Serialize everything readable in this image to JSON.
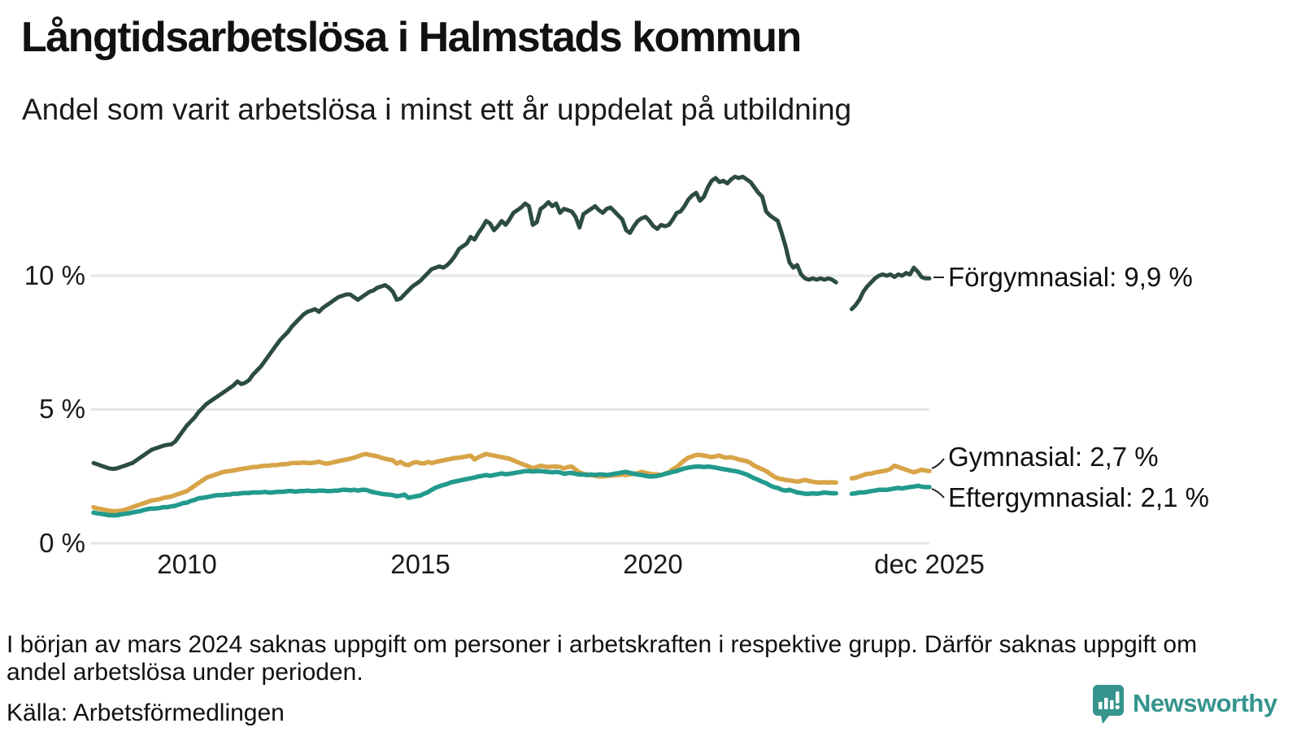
{
  "header": {
    "title": "Långtidsarbetslösa i Halmstads kommun",
    "subtitle": "Andel som varit arbetslösa i minst ett år uppdelat på utbildning"
  },
  "chart_data": {
    "type": "line",
    "title": "Långtidsarbetslösa i Halmstads kommun",
    "subtitle": "Andel som varit arbetslösa i minst ett år uppdelat på utbildning",
    "unit": "%",
    "interval": "monthly",
    "x_start": "2008-01",
    "x_end": "2025-12",
    "ylim": [
      0,
      14.5
    ],
    "grid": "horizontal",
    "ytick_values": [
      0,
      5,
      10
    ],
    "axis_labels": {
      "y": [
        "0 %",
        "5 %",
        "10 %"
      ],
      "x": [
        "2010",
        "2015",
        "2020",
        "dec 2025"
      ]
    },
    "xtick_month_index": [
      24,
      84,
      144,
      215
    ],
    "missing_data_months": [
      "2024-01",
      "2024-02",
      "2024-03"
    ],
    "colors": {
      "grid": "#e6e6e6",
      "connector": "#222222"
    },
    "series": [
      {
        "name": "Förgymnasial",
        "color": "#2c4c43",
        "end_value": "9,9 %",
        "end_label": "Förgymnasial: 9,9 %",
        "values": [
          3.0,
          2.95,
          2.9,
          2.85,
          2.8,
          2.78,
          2.8,
          2.85,
          2.9,
          2.95,
          3.0,
          3.1,
          3.2,
          3.3,
          3.4,
          3.5,
          3.55,
          3.6,
          3.65,
          3.68,
          3.7,
          3.8,
          4.0,
          4.2,
          4.4,
          4.55,
          4.7,
          4.9,
          5.05,
          5.2,
          5.3,
          5.4,
          5.5,
          5.6,
          5.7,
          5.8,
          5.9,
          6.05,
          5.95,
          6.0,
          6.1,
          6.3,
          6.45,
          6.6,
          6.8,
          7.0,
          7.2,
          7.4,
          7.6,
          7.75,
          7.9,
          8.1,
          8.25,
          8.4,
          8.55,
          8.65,
          8.7,
          8.75,
          8.65,
          8.8,
          8.9,
          9.0,
          9.1,
          9.2,
          9.25,
          9.3,
          9.3,
          9.2,
          9.1,
          9.2,
          9.3,
          9.4,
          9.45,
          9.55,
          9.6,
          9.65,
          9.55,
          9.4,
          9.1,
          9.15,
          9.3,
          9.45,
          9.6,
          9.7,
          9.8,
          9.95,
          10.1,
          10.25,
          10.3,
          10.35,
          10.3,
          10.4,
          10.55,
          10.75,
          11.0,
          11.1,
          11.2,
          11.45,
          11.35,
          11.6,
          11.8,
          12.05,
          11.95,
          11.7,
          11.85,
          12.05,
          11.9,
          12.1,
          12.35,
          12.45,
          12.55,
          12.7,
          12.6,
          11.9,
          12.0,
          12.5,
          12.6,
          12.75,
          12.6,
          12.7,
          12.35,
          12.5,
          12.45,
          12.4,
          12.2,
          11.8,
          12.3,
          12.4,
          12.5,
          12.6,
          12.45,
          12.35,
          12.5,
          12.55,
          12.4,
          12.25,
          12.1,
          11.7,
          11.6,
          11.85,
          12.05,
          12.15,
          12.2,
          12.05,
          11.85,
          11.75,
          11.9,
          11.85,
          11.9,
          12.1,
          12.35,
          12.4,
          12.6,
          12.85,
          13.0,
          13.1,
          12.8,
          12.95,
          13.3,
          13.55,
          13.65,
          13.5,
          13.55,
          13.45,
          13.6,
          13.7,
          13.65,
          13.7,
          13.6,
          13.5,
          13.3,
          13.1,
          12.95,
          12.4,
          12.25,
          12.15,
          12.05,
          11.6,
          11.1,
          10.5,
          10.3,
          10.4,
          10.05,
          9.9,
          9.85,
          9.9,
          9.85,
          9.9,
          9.85,
          9.9,
          9.85,
          9.75,
          null,
          null,
          null,
          8.75,
          8.9,
          9.1,
          9.4,
          9.6,
          9.75,
          9.9,
          10.0,
          10.05,
          10.0,
          10.05,
          9.95,
          10.05,
          10.0,
          10.1,
          10.05,
          10.3,
          10.15,
          9.95,
          9.9,
          9.9
        ]
      },
      {
        "name": "Gymnasial",
        "color": "#d8a448",
        "end_value": "2,7 %",
        "end_label": "Gymnasial: 2,7 %",
        "values": [
          1.35,
          1.3,
          1.28,
          1.25,
          1.22,
          1.2,
          1.2,
          1.22,
          1.25,
          1.3,
          1.35,
          1.4,
          1.45,
          1.5,
          1.55,
          1.6,
          1.62,
          1.65,
          1.7,
          1.72,
          1.75,
          1.8,
          1.85,
          1.9,
          1.95,
          2.05,
          2.15,
          2.25,
          2.35,
          2.45,
          2.5,
          2.55,
          2.6,
          2.65,
          2.68,
          2.7,
          2.72,
          2.75,
          2.78,
          2.8,
          2.82,
          2.85,
          2.85,
          2.88,
          2.9,
          2.9,
          2.92,
          2.92,
          2.95,
          2.95,
          2.97,
          3.0,
          3.0,
          3.0,
          3.02,
          3.0,
          3.0,
          3.02,
          3.05,
          3.0,
          2.98,
          3.0,
          3.04,
          3.07,
          3.1,
          3.13,
          3.16,
          3.2,
          3.25,
          3.3,
          3.34,
          3.3,
          3.28,
          3.25,
          3.2,
          3.16,
          3.13,
          3.1,
          2.98,
          3.04,
          2.95,
          2.92,
          3.0,
          3.04,
          3.0,
          2.98,
          3.04,
          3.0,
          3.04,
          3.07,
          3.1,
          3.13,
          3.16,
          3.19,
          3.2,
          3.22,
          3.25,
          3.28,
          3.13,
          3.22,
          3.28,
          3.34,
          3.3,
          3.28,
          3.25,
          3.22,
          3.19,
          3.16,
          3.1,
          3.04,
          2.98,
          2.92,
          2.87,
          2.8,
          2.85,
          2.9,
          2.87,
          2.85,
          2.87,
          2.87,
          2.85,
          2.8,
          2.85,
          2.87,
          2.75,
          2.65,
          2.6,
          2.57,
          2.55,
          2.53,
          2.5,
          2.5,
          2.52,
          2.53,
          2.55,
          2.55,
          2.57,
          2.55,
          2.58,
          2.6,
          2.62,
          2.67,
          2.63,
          2.6,
          2.58,
          2.57,
          2.55,
          2.6,
          2.65,
          2.77,
          2.85,
          2.98,
          3.1,
          3.2,
          3.25,
          3.3,
          3.3,
          3.28,
          3.25,
          3.22,
          3.25,
          3.28,
          3.22,
          3.2,
          3.22,
          3.18,
          3.13,
          3.1,
          3.07,
          3.0,
          2.9,
          2.83,
          2.77,
          2.7,
          2.6,
          2.5,
          2.43,
          2.4,
          2.37,
          2.35,
          2.33,
          2.3,
          2.33,
          2.37,
          2.33,
          2.3,
          2.28,
          2.27,
          2.28,
          2.27,
          2.28,
          2.27,
          null,
          null,
          null,
          2.43,
          2.45,
          2.5,
          2.55,
          2.6,
          2.6,
          2.65,
          2.67,
          2.7,
          2.72,
          2.78,
          2.9,
          2.85,
          2.8,
          2.75,
          2.7,
          2.65,
          2.7,
          2.75,
          2.72,
          2.7
        ]
      },
      {
        "name": "Eftergymnasial",
        "color": "#229a8d",
        "end_value": "2,1 %",
        "end_label": "Eftergymnasial: 2,1 %",
        "values": [
          1.15,
          1.12,
          1.1,
          1.08,
          1.05,
          1.05,
          1.05,
          1.08,
          1.1,
          1.12,
          1.15,
          1.18,
          1.2,
          1.25,
          1.28,
          1.3,
          1.3,
          1.32,
          1.35,
          1.35,
          1.38,
          1.4,
          1.45,
          1.5,
          1.52,
          1.58,
          1.62,
          1.68,
          1.7,
          1.72,
          1.75,
          1.78,
          1.8,
          1.8,
          1.82,
          1.82,
          1.85,
          1.85,
          1.87,
          1.88,
          1.88,
          1.9,
          1.9,
          1.9,
          1.92,
          1.9,
          1.9,
          1.92,
          1.92,
          1.93,
          1.95,
          1.95,
          1.93,
          1.95,
          1.95,
          1.97,
          1.95,
          1.95,
          1.97,
          1.97,
          1.95,
          1.95,
          1.97,
          1.97,
          2.0,
          2.0,
          1.98,
          2.0,
          1.97,
          2.0,
          2.0,
          1.95,
          1.91,
          1.88,
          1.85,
          1.83,
          1.82,
          1.8,
          1.76,
          1.78,
          1.82,
          1.7,
          1.73,
          1.76,
          1.78,
          1.85,
          1.91,
          2.0,
          2.08,
          2.13,
          2.18,
          2.22,
          2.28,
          2.31,
          2.34,
          2.37,
          2.4,
          2.43,
          2.46,
          2.5,
          2.52,
          2.55,
          2.52,
          2.55,
          2.58,
          2.61,
          2.58,
          2.6,
          2.62,
          2.65,
          2.67,
          2.7,
          2.7,
          2.68,
          2.7,
          2.7,
          2.68,
          2.67,
          2.65,
          2.67,
          2.65,
          2.6,
          2.62,
          2.63,
          2.6,
          2.57,
          2.57,
          2.55,
          2.57,
          2.55,
          2.57,
          2.57,
          2.55,
          2.57,
          2.6,
          2.62,
          2.65,
          2.67,
          2.63,
          2.6,
          2.57,
          2.55,
          2.52,
          2.5,
          2.5,
          2.52,
          2.55,
          2.6,
          2.63,
          2.67,
          2.7,
          2.75,
          2.8,
          2.83,
          2.85,
          2.87,
          2.87,
          2.85,
          2.87,
          2.85,
          2.83,
          2.8,
          2.77,
          2.75,
          2.72,
          2.7,
          2.67,
          2.62,
          2.57,
          2.5,
          2.43,
          2.37,
          2.3,
          2.25,
          2.16,
          2.1,
          2.07,
          2.0,
          1.97,
          2.0,
          1.95,
          1.9,
          1.88,
          1.85,
          1.85,
          1.87,
          1.85,
          1.87,
          1.9,
          1.88,
          1.87,
          1.87,
          null,
          null,
          null,
          1.85,
          1.87,
          1.9,
          1.9,
          1.92,
          1.95,
          1.97,
          2.0,
          2.0,
          2.0,
          2.02,
          2.05,
          2.07,
          2.05,
          2.08,
          2.1,
          2.12,
          2.15,
          2.12,
          2.1,
          2.1
        ]
      }
    ]
  },
  "footer": {
    "note": "I början av mars 2024 saknas uppgift om personer i arbetskraften i respektive grupp. Därför saknas uppgift om andel arbetslösa under perioden.",
    "source": "Källa: Arbetsförmedlingen",
    "brand": "Newsworthy"
  }
}
